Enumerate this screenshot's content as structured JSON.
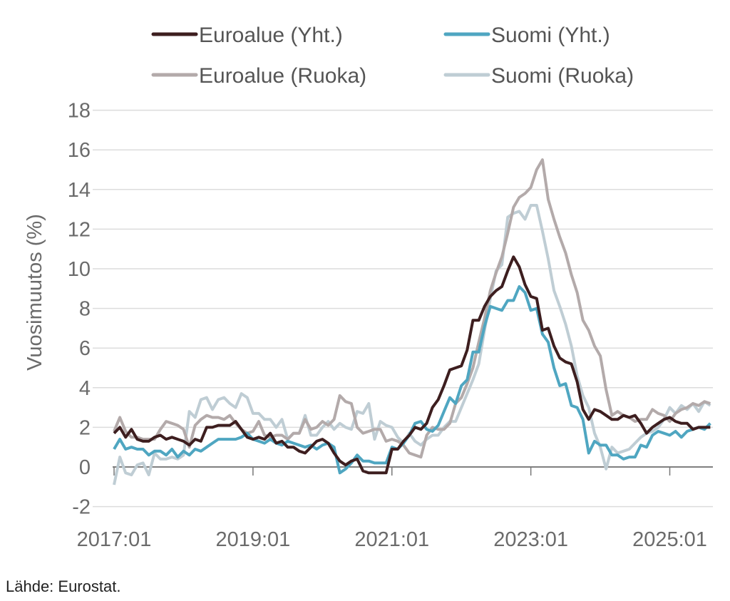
{
  "chart_data": {
    "type": "line",
    "title": "",
    "xlabel": "",
    "ylabel": "Vuosimuutos (%)",
    "ylim": [
      -2,
      18
    ],
    "yticks": [
      -2,
      0,
      2,
      4,
      6,
      8,
      10,
      12,
      14,
      16,
      18
    ],
    "start_month": "2017:01",
    "end_month": "2025:08",
    "xtick_labels": [
      "2017:01",
      "2019:01",
      "2021:01",
      "2023:01",
      "2025:01"
    ],
    "grid": true,
    "legend_placement": "top",
    "series": [
      {
        "name": "Euroalue (Yht.)",
        "color": "#3d1e1f",
        "values": [
          1.7,
          2.0,
          1.5,
          1.9,
          1.4,
          1.3,
          1.3,
          1.5,
          1.6,
          1.4,
          1.5,
          1.4,
          1.3,
          1.1,
          1.4,
          1.3,
          2.0,
          2.0,
          2.1,
          2.1,
          2.1,
          2.3,
          1.9,
          1.5,
          1.4,
          1.5,
          1.4,
          1.7,
          1.2,
          1.3,
          1.0,
          1.0,
          0.8,
          0.7,
          1.0,
          1.3,
          1.4,
          1.2,
          0.7,
          0.3,
          0.1,
          0.3,
          0.4,
          -0.2,
          -0.3,
          -0.3,
          -0.3,
          -0.3,
          0.9,
          0.9,
          1.3,
          1.6,
          2.0,
          1.9,
          2.2,
          3.0,
          3.4,
          4.1,
          4.9,
          5.0,
          5.1,
          5.9,
          7.4,
          7.4,
          8.1,
          8.6,
          8.9,
          9.1,
          9.9,
          10.6,
          10.1,
          9.2,
          8.6,
          8.5,
          6.9,
          7.0,
          6.1,
          5.5,
          5.3,
          5.2,
          4.3,
          2.9,
          2.4,
          2.9,
          2.8,
          2.6,
          2.4,
          2.4,
          2.6,
          2.5,
          2.6,
          2.2,
          1.7,
          2.0,
          2.2,
          2.4,
          2.5,
          2.3,
          2.2,
          2.2,
          1.9,
          2.0,
          2.0,
          2.0
        ]
      },
      {
        "name": "Suomi (Yht.)",
        "color": "#4fa6c1",
        "values": [
          0.9,
          1.4,
          0.9,
          1.0,
          0.9,
          0.9,
          0.6,
          0.8,
          0.8,
          0.6,
          0.9,
          0.5,
          0.8,
          0.6,
          0.9,
          0.8,
          1.0,
          1.2,
          1.4,
          1.4,
          1.4,
          1.4,
          1.5,
          1.7,
          1.4,
          1.3,
          1.2,
          1.4,
          1.2,
          1.1,
          1.3,
          1.2,
          1.1,
          1.0,
          1.1,
          0.9,
          1.1,
          1.2,
          1.0,
          -0.3,
          -0.1,
          0.2,
          0.6,
          0.3,
          0.3,
          0.2,
          0.2,
          0.2,
          1.0,
          0.9,
          1.2,
          1.6,
          2.2,
          2.3,
          1.9,
          1.8,
          2.1,
          2.8,
          3.5,
          3.2,
          4.1,
          4.4,
          5.8,
          5.8,
          7.1,
          8.1,
          8.0,
          7.9,
          8.4,
          8.4,
          9.1,
          8.8,
          7.9,
          8.0,
          6.7,
          6.3,
          5.0,
          4.1,
          4.2,
          3.1,
          3.0,
          2.4,
          0.7,
          1.3,
          1.1,
          1.1,
          0.6,
          0.6,
          0.4,
          0.5,
          0.5,
          1.1,
          1.0,
          1.6,
          1.8,
          1.7,
          1.6,
          1.8,
          1.5,
          1.8,
          1.9,
          2.0,
          1.9,
          2.2
        ]
      },
      {
        "name": "Euroalue (Ruoka)",
        "color": "#b3aaaa",
        "values": [
          1.8,
          2.5,
          1.8,
          1.5,
          1.5,
          1.4,
          1.4,
          1.4,
          1.9,
          2.3,
          2.2,
          2.1,
          1.9,
          1.0,
          2.1,
          2.4,
          2.6,
          2.5,
          2.5,
          2.4,
          2.6,
          2.2,
          1.9,
          1.7,
          1.8,
          2.3,
          1.6,
          1.5,
          1.6,
          1.6,
          1.4,
          1.7,
          1.7,
          2.4,
          1.9,
          2.0,
          2.3,
          2.1,
          2.4,
          3.6,
          3.3,
          3.2,
          2.0,
          1.7,
          1.8,
          1.9,
          1.9,
          1.3,
          1.4,
          1.3,
          1.1,
          0.7,
          0.6,
          0.5,
          1.6,
          2.0,
          1.9,
          1.9,
          2.2,
          3.2,
          3.5,
          4.2,
          5.0,
          6.3,
          7.5,
          8.9,
          9.8,
          10.6,
          11.8,
          13.1,
          13.6,
          13.8,
          14.1,
          15.0,
          15.5,
          13.5,
          12.5,
          11.6,
          10.8,
          9.7,
          8.8,
          7.4,
          6.9,
          6.1,
          5.6,
          3.9,
          2.6,
          2.8,
          2.6,
          2.5,
          2.3,
          2.4,
          2.4,
          2.9,
          2.7,
          2.6,
          2.3,
          2.7,
          2.9,
          3.0,
          3.2,
          3.1,
          3.3,
          3.2
        ]
      },
      {
        "name": "Suomi (Ruoka)",
        "color": "#bfcdd4",
        "values": [
          -0.9,
          0.5,
          -0.3,
          -0.4,
          0.1,
          0.2,
          -0.4,
          0.7,
          0.4,
          0.4,
          0.5,
          0.4,
          0.6,
          2.8,
          2.5,
          3.4,
          3.5,
          2.9,
          3.4,
          3.5,
          3.2,
          3.0,
          3.7,
          3.5,
          2.7,
          2.7,
          2.4,
          2.4,
          2.0,
          2.4,
          1.4,
          1.7,
          1.7,
          2.6,
          1.6,
          1.6,
          2.0,
          2.3,
          1.9,
          2.2,
          2.0,
          1.9,
          2.8,
          2.7,
          3.2,
          1.4,
          2.3,
          2.1,
          2.0,
          1.5,
          1.2,
          1.7,
          1.3,
          1.1,
          1.4,
          1.6,
          1.6,
          2.0,
          2.3,
          2.3,
          3.0,
          3.7,
          4.4,
          5.2,
          6.9,
          8.5,
          9.9,
          10.2,
          12.6,
          12.8,
          12.9,
          12.5,
          13.2,
          13.2,
          11.9,
          10.5,
          8.9,
          8.1,
          7.2,
          6.1,
          4.6,
          3.6,
          3.0,
          1.7,
          1.0,
          -0.1,
          1.0,
          0.7,
          0.8,
          0.9,
          1.2,
          1.5,
          1.7,
          1.8,
          2.0,
          2.4,
          3.0,
          2.7,
          3.1,
          2.9,
          3.2,
          2.8,
          3.3,
          3.1
        ]
      }
    ]
  },
  "source": "Lähde: Eurostat."
}
